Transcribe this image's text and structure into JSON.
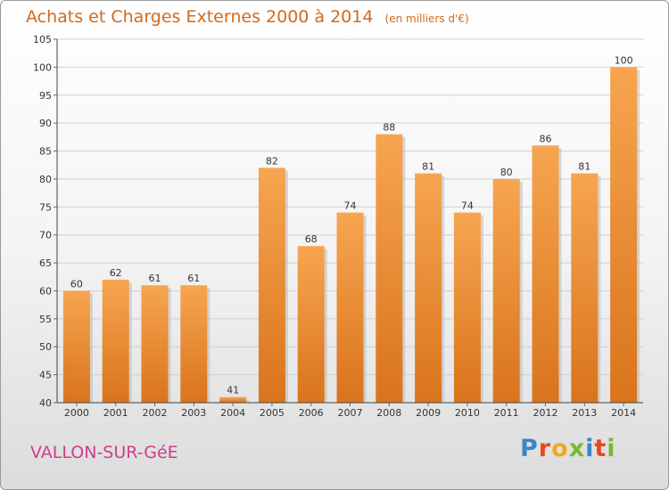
{
  "chart_data": {
    "type": "bar",
    "title": "Achats et Charges Externes 2000 à 2014",
    "unit": "(en milliers d'€)",
    "categories": [
      "2000",
      "2001",
      "2002",
      "2003",
      "2004",
      "2005",
      "2006",
      "2007",
      "2008",
      "2009",
      "2010",
      "2011",
      "2012",
      "2013",
      "2014"
    ],
    "values": [
      60,
      62,
      61,
      61,
      41,
      82,
      68,
      74,
      88,
      81,
      74,
      80,
      86,
      81,
      100
    ],
    "ylim": [
      40,
      105
    ],
    "yticks": [
      40,
      45,
      50,
      55,
      60,
      65,
      70,
      75,
      80,
      85,
      90,
      95,
      100,
      105
    ],
    "grid": true,
    "bar_color": "#f0963c"
  },
  "place_name": "VALLON-SUR-GéE",
  "logo": {
    "text": "Proxiti",
    "icon": "proxiti-logo"
  }
}
